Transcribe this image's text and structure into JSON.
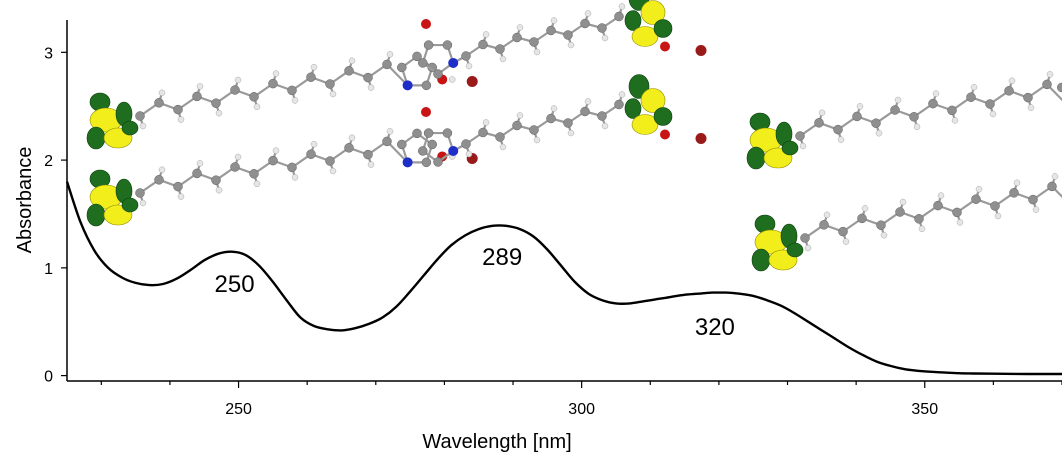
{
  "chart_data": {
    "type": "line",
    "title": "",
    "xlabel": "Wavelength [nm]",
    "ylabel": "Absorbance",
    "xlim": [
      225,
      370
    ],
    "ylim": [
      -0.05,
      3.3
    ],
    "x_ticks": [
      250,
      300,
      350
    ],
    "y_ticks": [
      0,
      1,
      2,
      3
    ],
    "grid": false,
    "series": [
      {
        "x": [
          225,
          227,
          229,
          231,
          233,
          235,
          237,
          239,
          241,
          243,
          245,
          247,
          249,
          251,
          253,
          255,
          257,
          259,
          261,
          263,
          265,
          267,
          269,
          271,
          273,
          275,
          277,
          279,
          281,
          283,
          285,
          287,
          289,
          291,
          293,
          295,
          297,
          299,
          301,
          303,
          305,
          307,
          309,
          311,
          313,
          315,
          317,
          319,
          321,
          323,
          325,
          327,
          329,
          331,
          333,
          335,
          337,
          339,
          341,
          343,
          345,
          347,
          349,
          351,
          353,
          355,
          357,
          360,
          365,
          370
        ],
        "y": [
          1.8,
          1.42,
          1.16,
          1.0,
          0.91,
          0.86,
          0.84,
          0.85,
          0.9,
          0.98,
          1.07,
          1.13,
          1.15,
          1.12,
          1.02,
          0.87,
          0.7,
          0.54,
          0.46,
          0.43,
          0.42,
          0.44,
          0.48,
          0.54,
          0.64,
          0.78,
          0.93,
          1.08,
          1.21,
          1.3,
          1.36,
          1.39,
          1.39,
          1.36,
          1.29,
          1.17,
          1.02,
          0.87,
          0.76,
          0.7,
          0.67,
          0.67,
          0.69,
          0.71,
          0.73,
          0.75,
          0.76,
          0.77,
          0.77,
          0.76,
          0.74,
          0.7,
          0.65,
          0.58,
          0.5,
          0.42,
          0.34,
          0.26,
          0.19,
          0.13,
          0.09,
          0.06,
          0.045,
          0.035,
          0.028,
          0.022,
          0.02,
          0.018,
          0.015,
          0.015
        ]
      }
    ],
    "annotations": [
      {
        "text": "250",
        "x": 250,
        "y": 0.85
      },
      {
        "text": "289",
        "x": 289,
        "y": 1.1
      },
      {
        "text": "320",
        "x": 320,
        "y": 0.45
      }
    ]
  }
}
